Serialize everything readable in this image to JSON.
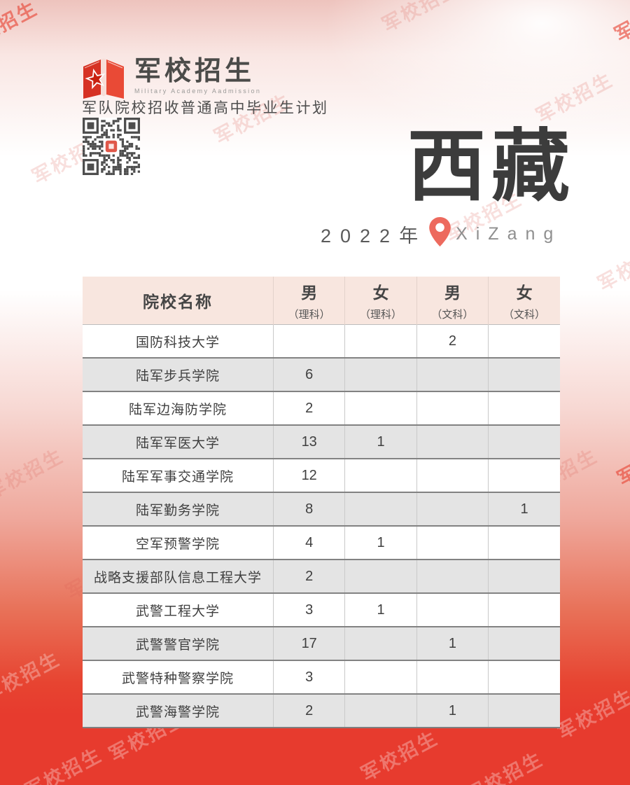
{
  "watermark": {
    "text": "军校招生"
  },
  "logo": {
    "title": "军校招生",
    "subtitle": "Military Academy Aadmission"
  },
  "tagline": "军队院校招收普通高中毕业生计划",
  "title": {
    "cn": "西藏",
    "year": "2022年",
    "en": "XiZang"
  },
  "table": {
    "headers": {
      "school": "院校名称",
      "cols": [
        {
          "gender": "男",
          "track": "（理科）"
        },
        {
          "gender": "女",
          "track": "（理科）"
        },
        {
          "gender": "男",
          "track": "（文科）"
        },
        {
          "gender": "女",
          "track": "（文科）"
        }
      ]
    },
    "rows": [
      {
        "school": "国防科技大学",
        "values": [
          "",
          "",
          "2",
          ""
        ]
      },
      {
        "school": "陆军步兵学院",
        "values": [
          "6",
          "",
          "",
          ""
        ]
      },
      {
        "school": "陆军边海防学院",
        "values": [
          "2",
          "",
          "",
          ""
        ]
      },
      {
        "school": "陆军军医大学",
        "values": [
          "13",
          "1",
          "",
          ""
        ]
      },
      {
        "school": "陆军军事交通学院",
        "values": [
          "12",
          "",
          "",
          ""
        ]
      },
      {
        "school": "陆军勤务学院",
        "values": [
          "8",
          "",
          "",
          "1"
        ]
      },
      {
        "school": "空军预警学院",
        "values": [
          "4",
          "1",
          "",
          ""
        ]
      },
      {
        "school": "战略支援部队信息工程大学",
        "values": [
          "2",
          "",
          "",
          ""
        ]
      },
      {
        "school": "武警工程大学",
        "values": [
          "3",
          "1",
          "",
          ""
        ]
      },
      {
        "school": "武警警官学院",
        "values": [
          "17",
          "",
          "1",
          ""
        ]
      },
      {
        "school": "武警特种警察学院",
        "values": [
          "3",
          "",
          "",
          ""
        ]
      },
      {
        "school": "武警海警学院",
        "values": [
          "2",
          "",
          "1",
          ""
        ]
      }
    ]
  },
  "colors": {
    "accent_red": "#e73b2e",
    "logo_red": "#dc3424",
    "header_bg": "#f8e6df",
    "alt_row_gray": "#e4e4e4",
    "pin_red": "#ed6a5e",
    "title_gray": "#3c3c3c"
  }
}
